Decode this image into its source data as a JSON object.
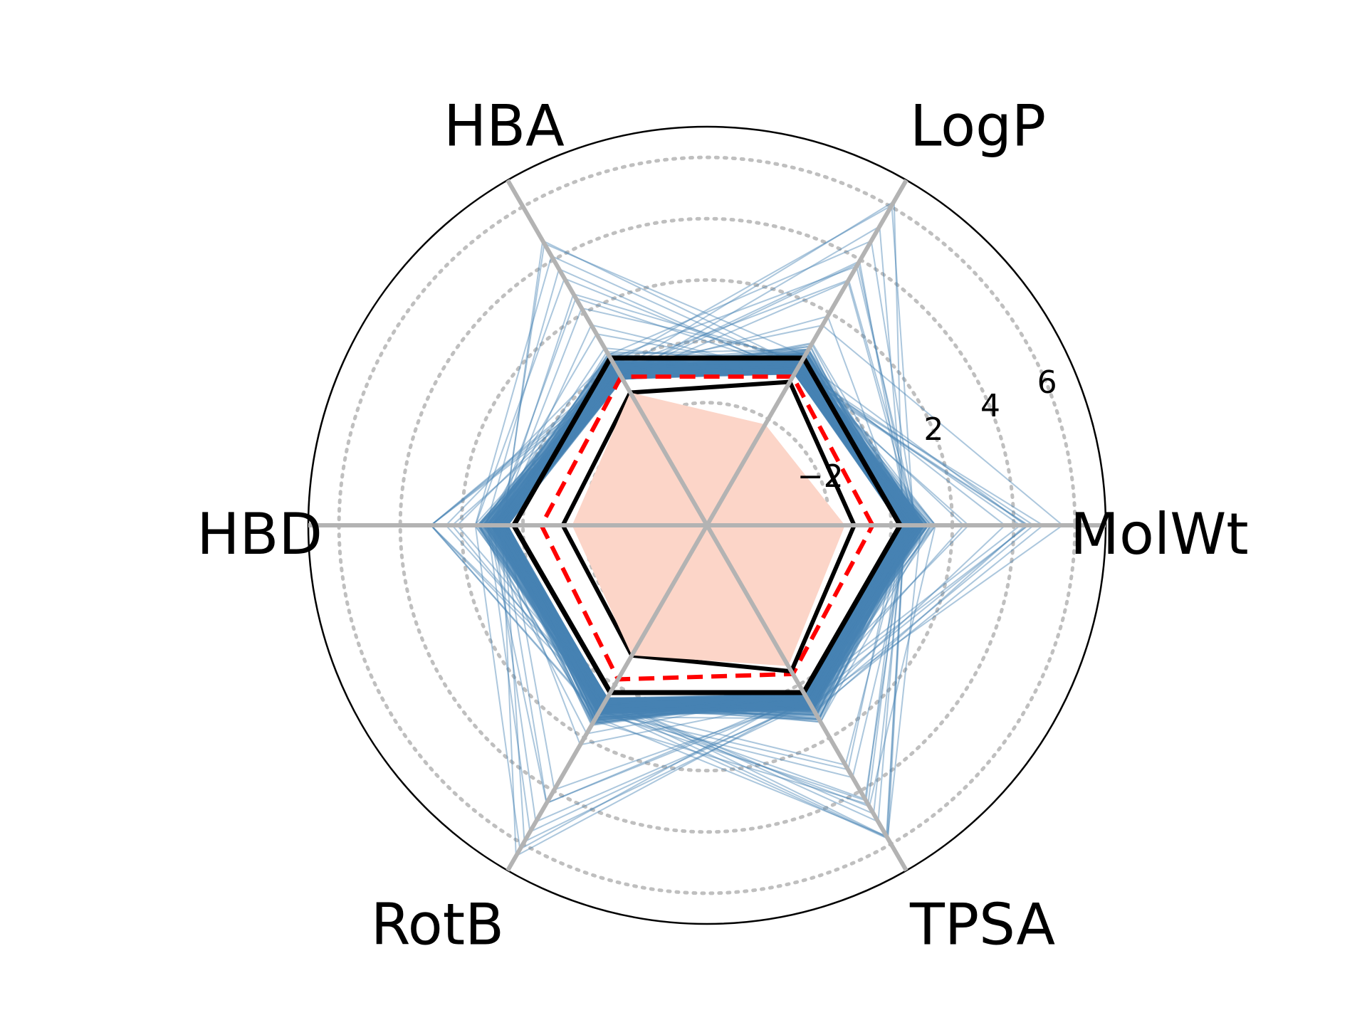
{
  "chart_data": {
    "type": "radar",
    "title": "",
    "axes": [
      "MolWt",
      "LogP",
      "HBA",
      "HBD",
      "RotB",
      "TPSA"
    ],
    "rlim": [
      -6,
      7
    ],
    "r_ticks": [
      -2,
      2,
      4,
      6
    ],
    "r_tick_labels": [
      "−2",
      "2",
      "4",
      "6"
    ],
    "grid": "dotted",
    "series": [
      {
        "style": "black-solid-outer",
        "values": [
          0.3,
          0.3,
          0.3,
          0.3,
          0.3,
          0.3
        ]
      },
      {
        "style": "red-dashed",
        "values": [
          -0.6,
          -0.4,
          -0.4,
          -0.6,
          -0.2,
          -0.4
        ]
      },
      {
        "style": "black-solid-inner",
        "values": [
          -1.2,
          -0.6,
          -1.0,
          -1.3,
          -1.1,
          -0.5
        ]
      },
      {
        "style": "filled-salmon",
        "values": [
          -1.5,
          -2.2,
          -1.0,
          -1.6,
          -1.1,
          -0.7
        ]
      }
    ],
    "background_lines": {
      "count": 300,
      "color": "#4682b4",
      "center": [
        0.3,
        -0.3,
        -0.5,
        0.5,
        0.5,
        0.3
      ],
      "max": [
        5.6,
        6.2,
        5.0,
        3.0,
        6.8,
        5.8
      ]
    }
  },
  "colors": {
    "background_lines": "#4682b4",
    "fill": "#fcd5c8",
    "outline": "#000000",
    "dashed": "#ff0000",
    "spokes": "#b3b3b3",
    "grid": "#bfbfbf"
  }
}
